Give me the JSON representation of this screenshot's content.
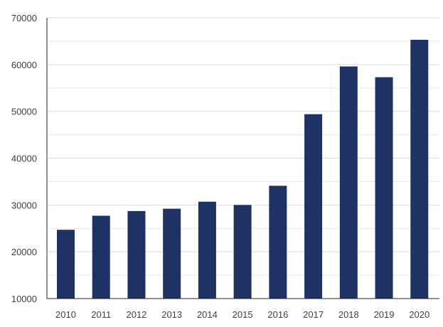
{
  "chart_data": {
    "type": "bar",
    "title": "",
    "xlabel": "",
    "ylabel": "",
    "categories": [
      "2010",
      "2011",
      "2012",
      "2013",
      "2014",
      "2015",
      "2016",
      "2017",
      "2018",
      "2019",
      "2020"
    ],
    "values": [
      24700,
      27700,
      28700,
      29200,
      30700,
      30000,
      34100,
      49400,
      59600,
      57300,
      65300
    ],
    "ylim": [
      10000,
      70000
    ],
    "yticks": [
      "10000",
      "20000",
      "30000",
      "40000",
      "50000",
      "60000",
      "70000"
    ],
    "grid": true,
    "legend": "none",
    "bar_color": "#1f3264"
  }
}
